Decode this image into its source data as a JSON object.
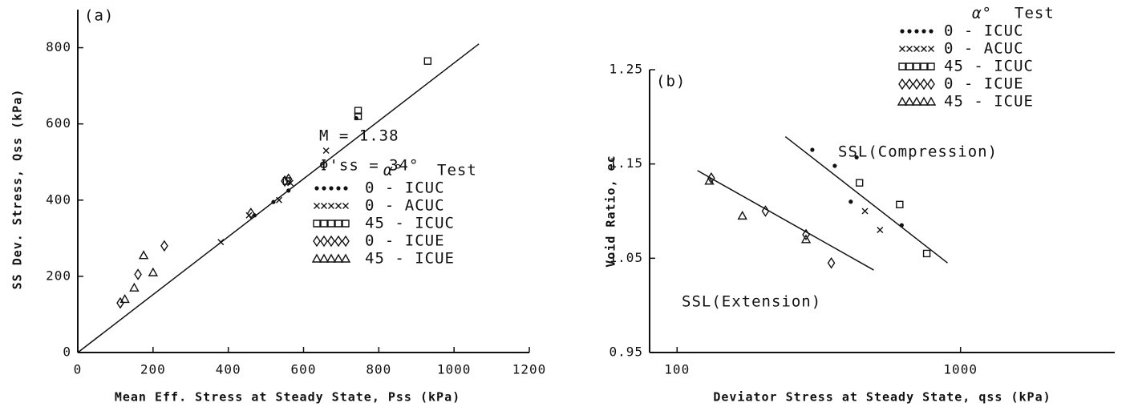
{
  "chart_data": [
    {
      "type": "scatter",
      "xlabel": "Mean Eff. Stress at Steady State, Pss (kPa)",
      "ylabel": "SS Dev. Stress, Qss (kPa)",
      "annotations": [
        "(a)",
        "M = 1.38",
        "Φ'ss = 34°"
      ],
      "legend_headers": [
        "α°",
        "Test"
      ],
      "xlim": [
        0,
        1200
      ],
      "xticks": [
        0,
        200,
        400,
        600,
        800,
        1000,
        1200
      ],
      "ylim": [
        0,
        900
      ],
      "yticks": [
        0,
        200,
        400,
        600,
        800
      ],
      "lines": [
        {
          "x": [
            0,
            1066
          ],
          "values": [
            0,
            810
          ]
        }
      ],
      "series": [
        {
          "name": "0 - ICUC",
          "marker": "dot",
          "color": "#111",
          "x": [
            470,
            520,
            560,
            740
          ],
          "values": [
            360,
            395,
            425,
            615
          ]
        },
        {
          "name": "0 - ACUC",
          "marker": "cross",
          "color": "#111",
          "x": [
            380,
            455,
            535,
            565,
            660
          ],
          "values": [
            290,
            360,
            400,
            445,
            530
          ]
        },
        {
          "name": "45 - ICUC",
          "marker": "square",
          "color": "#111",
          "x": [
            555,
            745,
            745,
            930
          ],
          "values": [
            450,
            635,
            620,
            765
          ]
        },
        {
          "name": "0 - ICUE",
          "marker": "diamond",
          "color": "#111",
          "x": [
            113,
            160,
            230,
            460,
            550,
            560
          ],
          "values": [
            130,
            205,
            280,
            365,
            450,
            455
          ]
        },
        {
          "name": "45 - ICUE",
          "marker": "triangle",
          "color": "#111",
          "x": [
            125,
            150,
            175,
            200
          ],
          "values": [
            140,
            170,
            255,
            210
          ]
        }
      ]
    },
    {
      "type": "scatter",
      "xscale": "log",
      "xlabel": "Deviator Stress at Steady State, qss (kPa)",
      "ylabel": "Void Ratio, ec",
      "annotations": [
        "(b)"
      ],
      "legend_headers": [
        "α°",
        "Test"
      ],
      "xlim": [
        80,
        3500
      ],
      "xticks": [
        100,
        1000
      ],
      "ylim": [
        0.95,
        1.25
      ],
      "yticks": [
        0.95,
        1.05,
        1.15,
        1.25
      ],
      "lines": [
        {
          "label": "SSL(Compression)",
          "x": [
            241,
            900
          ],
          "values": [
            1.179,
            1.045
          ]
        },
        {
          "label": "SSL(Extension)",
          "x": [
            118,
            494
          ],
          "values": [
            1.143,
            1.0375
          ]
        }
      ],
      "series": [
        {
          "name": "0 - ICUC",
          "marker": "dot",
          "color": "#111",
          "x": [
            300,
            360,
            430,
            410,
            620
          ],
          "values": [
            1.165,
            1.148,
            1.157,
            1.11,
            1.085
          ]
        },
        {
          "name": "0 - ACUC",
          "marker": "cross",
          "color": "#111",
          "x": [
            460,
            520
          ],
          "values": [
            1.1,
            1.08
          ]
        },
        {
          "name": "45 - ICUC",
          "marker": "square",
          "color": "#111",
          "x": [
            440,
            610,
            760
          ],
          "values": [
            1.13,
            1.107,
            1.055
          ]
        },
        {
          "name": "0 - ICUE",
          "marker": "diamond",
          "color": "#111",
          "x": [
            132,
            205,
            285,
            350
          ],
          "values": [
            1.135,
            1.1,
            1.075,
            1.045
          ]
        },
        {
          "name": "45 - ICUE",
          "marker": "triangle",
          "color": "#111",
          "x": [
            130,
            170,
            285
          ],
          "values": [
            1.132,
            1.095,
            1.07
          ]
        }
      ]
    }
  ]
}
